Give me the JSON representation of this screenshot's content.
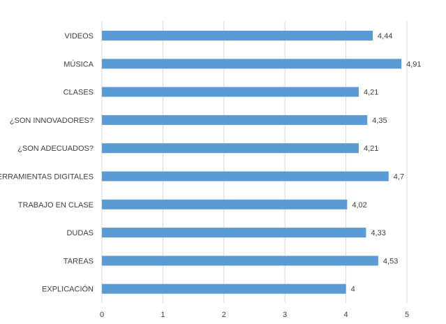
{
  "chart_data": {
    "type": "bar",
    "orientation": "horizontal",
    "categories": [
      "VIDEOS",
      "MÚSICA",
      "CLASES",
      "¿SON INNOVADORES?",
      "¿SON ADECUADOS?",
      "HERRAMIENTAS DIGITALES",
      "TRABAJO EN CLASE",
      "DUDAS",
      "TAREAS",
      "EXPLICACIÓN"
    ],
    "values": [
      4.44,
      4.91,
      4.21,
      4.35,
      4.21,
      4.7,
      4.02,
      4.33,
      4.53,
      4
    ],
    "data_labels": [
      "4,44",
      "4,91",
      "4,21",
      "4,35",
      "4,21",
      "4,7",
      "4,02",
      "4,33",
      "4,53",
      "4"
    ],
    "xlim": [
      0,
      5
    ],
    "x_ticks": [
      0,
      1,
      2,
      3,
      4,
      5
    ],
    "x_tick_labels": [
      "0",
      "1",
      "2",
      "3",
      "4",
      "5"
    ],
    "grid": "vertical",
    "legend": "none",
    "colors": {
      "bar": "#5b9bd5",
      "grid": "#d9d9d9",
      "text": "#404040"
    }
  }
}
